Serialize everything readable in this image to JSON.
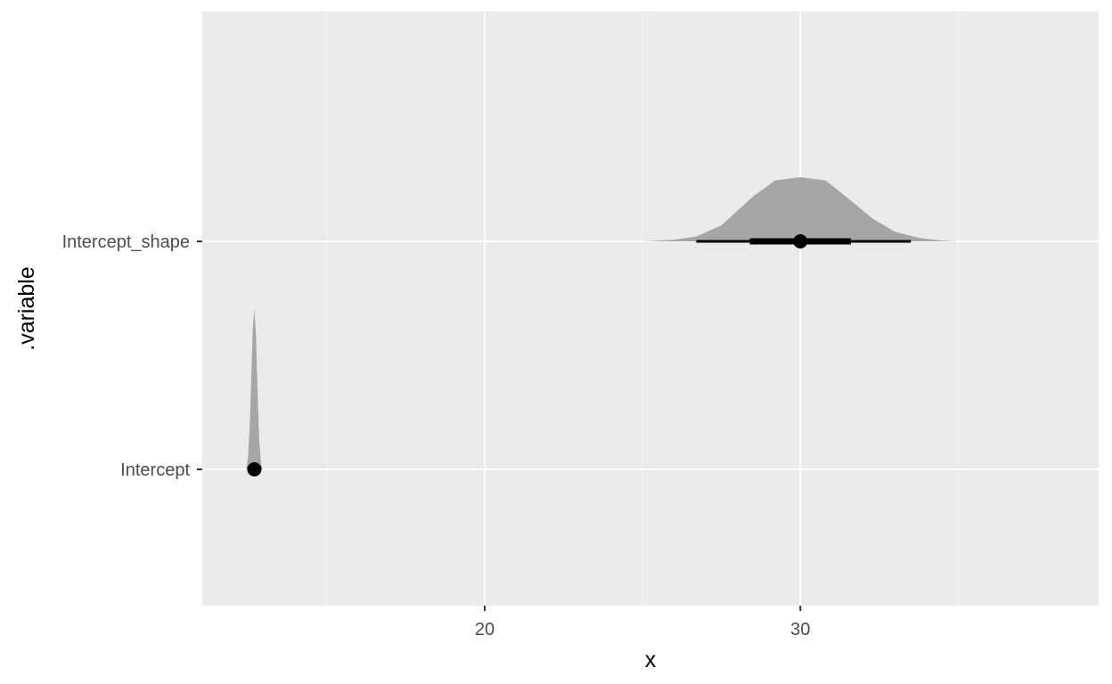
{
  "chart_data": {
    "type": "halfeye",
    "xlabel": "x",
    "ylabel": ".variable",
    "xlim": [
      11.05,
      39.45
    ],
    "x_ticks_major": [
      20,
      30
    ],
    "x_ticks_minor": [
      15,
      25,
      35
    ],
    "categories": [
      "Intercept",
      "Intercept_shape"
    ],
    "grid": true,
    "series": [
      {
        "category": "Intercept",
        "point": 12.7,
        "interval_66": [
          12.65,
          12.75
        ],
        "interval_95": [
          12.6,
          12.8
        ],
        "density": {
          "x": [
            12.45,
            12.5,
            12.55,
            12.6,
            12.65,
            12.7,
            12.75,
            12.8,
            12.85,
            12.9,
            12.95
          ],
          "y": [
            0.0,
            0.08,
            0.25,
            0.55,
            0.88,
            1.0,
            0.85,
            0.5,
            0.2,
            0.06,
            0.0
          ]
        }
      },
      {
        "category": "Intercept_shape",
        "point": 30.0,
        "interval_66": [
          28.4,
          31.6
        ],
        "interval_95": [
          26.7,
          33.5
        ],
        "density": {
          "x": [
            25.0,
            26.0,
            26.7,
            27.5,
            28.5,
            29.2,
            30.0,
            30.8,
            31.5,
            32.3,
            33.0,
            33.8,
            34.5,
            35.0
          ],
          "y": [
            0.0,
            0.01,
            0.03,
            0.1,
            0.28,
            0.38,
            0.4,
            0.38,
            0.27,
            0.14,
            0.06,
            0.02,
            0.005,
            0.0
          ]
        }
      }
    ],
    "colors": {
      "panel_background": "#ebebeb",
      "grid_major": "#ffffff",
      "grid_minor": "#f5f5f5",
      "density_fill": "#a6a6a6",
      "interval": "#000000",
      "point": "#000000"
    }
  }
}
